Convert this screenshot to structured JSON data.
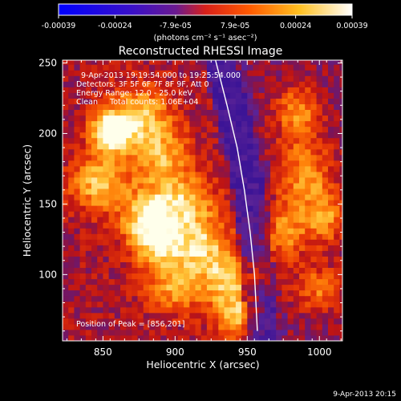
{
  "chart_data": {
    "type": "heatmap",
    "title": "Reconstructed RHESSI Image",
    "xlabel": "Heliocentric X (arcsec)",
    "ylabel": "Heliocentric Y (arcsec)",
    "xlim": [
      822,
      1016
    ],
    "ylim": [
      53,
      252
    ],
    "x_ticks": [
      850,
      900,
      950,
      1000
    ],
    "y_ticks": [
      100,
      150,
      200,
      250
    ],
    "grid": false,
    "colorbar": {
      "position": "top",
      "tick_values": [
        -0.00039,
        -0.00024,
        -7.9e-05,
        7.9e-05,
        0.00024,
        0.00039
      ],
      "tick_labels": [
        "-0.00039",
        "-0.00024",
        "-7.9e-05",
        "7.9e-05",
        "0.00024",
        "0.00039"
      ],
      "unit": "(photons cm⁻² s⁻¹ asec⁻²)",
      "range": [
        -0.00039,
        0.00039
      ],
      "colors": [
        "#1a14c8",
        "#6a2da8",
        "#c82a4a",
        "#ff6a0a",
        "#ffc43a",
        "#ffffff"
      ]
    },
    "annotations": [
      "9-Apr-2013 19:19:54.000 to 19:25:54.000",
      "Detectors: 3F 5F 6F 7F 8F 9F, Att 0",
      "Energy Range: 12.0 - 25.0 keV",
      "Clean     Total counts: 1.06E+04"
    ],
    "peak_label": "Position of Peak = [856,201]",
    "peak": {
      "x": 856,
      "y": 201
    },
    "limb_curve": [
      {
        "x": 928,
        "y": 252
      },
      {
        "x": 936,
        "y": 220
      },
      {
        "x": 943,
        "y": 190
      },
      {
        "x": 948,
        "y": 160
      },
      {
        "x": 952,
        "y": 130
      },
      {
        "x": 955,
        "y": 100
      },
      {
        "x": 957,
        "y": 60
      }
    ],
    "footer_date": "9-Apr-2013 20:15",
    "bright_sources": [
      {
        "x": 856,
        "y": 201,
        "sx": 10,
        "sy": 10,
        "a": 1.0
      },
      {
        "x": 848,
        "y": 165,
        "sx": 14,
        "sy": 14,
        "a": 0.65
      },
      {
        "x": 875,
        "y": 215,
        "sx": 14,
        "sy": 14,
        "a": 0.55
      },
      {
        "x": 890,
        "y": 185,
        "sx": 14,
        "sy": 18,
        "a": 0.55
      },
      {
        "x": 905,
        "y": 150,
        "sx": 16,
        "sy": 14,
        "a": 0.6
      },
      {
        "x": 880,
        "y": 140,
        "sx": 12,
        "sy": 12,
        "a": 0.65
      },
      {
        "x": 890,
        "y": 120,
        "sx": 14,
        "sy": 12,
        "a": 0.7
      },
      {
        "x": 920,
        "y": 120,
        "sx": 14,
        "sy": 14,
        "a": 0.55
      },
      {
        "x": 935,
        "y": 95,
        "sx": 12,
        "sy": 14,
        "a": 0.55
      },
      {
        "x": 900,
        "y": 90,
        "sx": 14,
        "sy": 12,
        "a": 0.5
      },
      {
        "x": 945,
        "y": 70,
        "sx": 12,
        "sy": 12,
        "a": 0.5
      },
      {
        "x": 990,
        "y": 170,
        "sx": 14,
        "sy": 18,
        "a": 0.55
      },
      {
        "x": 985,
        "y": 215,
        "sx": 12,
        "sy": 14,
        "a": 0.5
      },
      {
        "x": 975,
        "y": 130,
        "sx": 12,
        "sy": 14,
        "a": 0.55
      },
      {
        "x": 1005,
        "y": 140,
        "sx": 10,
        "sy": 14,
        "a": 0.5
      },
      {
        "x": 960,
        "y": 100,
        "sx": 10,
        "sy": 10,
        "a": 0.4
      },
      {
        "x": 1000,
        "y": 90,
        "sx": 12,
        "sy": 12,
        "a": 0.45
      }
    ]
  }
}
